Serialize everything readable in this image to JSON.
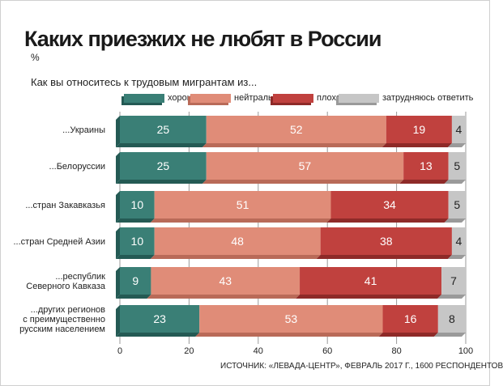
{
  "title": "Каких приезжих не любят в России",
  "unit": "%",
  "question": "Как вы относитесь к трудовым мигрантам из...",
  "source": "ИСТОЧНИК: «ЛЕВАДА-ЦЕНТР», ФЕВРАЛЬ 2017 Г., 1600 РЕСПОНДЕНТОВ",
  "colors": {
    "good": "#3a7f76",
    "neutral": "#e08c78",
    "bad": "#c0413e",
    "unsure": "#c6c6c6",
    "good_dark": "#245a54",
    "neutral_dark": "#b96a58",
    "bad_dark": "#8e2a28",
    "unsure_dark": "#9a9a9a"
  },
  "legend": [
    {
      "label": "хорошо",
      "key": "good"
    },
    {
      "label": "нейтрально",
      "key": "neutral"
    },
    {
      "label": "плохо",
      "key": "bad"
    },
    {
      "label": "затрудняюсь ответить",
      "key": "unsure"
    }
  ],
  "chart_data": {
    "type": "bar",
    "orientation": "horizontal",
    "stacked": true,
    "categories": [
      [
        "...Украины"
      ],
      [
        "...Белоруссии"
      ],
      [
        "...стран Закавказья"
      ],
      [
        "...стран Средней Азии"
      ],
      [
        "...республик",
        "Северного Кавказа"
      ],
      [
        "...других регионов",
        "с преимущественно",
        "русским населением"
      ]
    ],
    "series": [
      {
        "name": "хорошо",
        "values": [
          25,
          25,
          10,
          10,
          9,
          23
        ]
      },
      {
        "name": "нейтрально",
        "values": [
          52,
          57,
          51,
          48,
          43,
          53
        ]
      },
      {
        "name": "плохо",
        "values": [
          19,
          13,
          34,
          38,
          41,
          16
        ]
      },
      {
        "name": "затрудняюсь ответить",
        "values": [
          4,
          5,
          5,
          4,
          7,
          8
        ]
      }
    ],
    "xlim": [
      0,
      100
    ],
    "xticks": [
      0,
      20,
      40,
      60,
      80,
      100
    ],
    "legend_position": "top"
  }
}
